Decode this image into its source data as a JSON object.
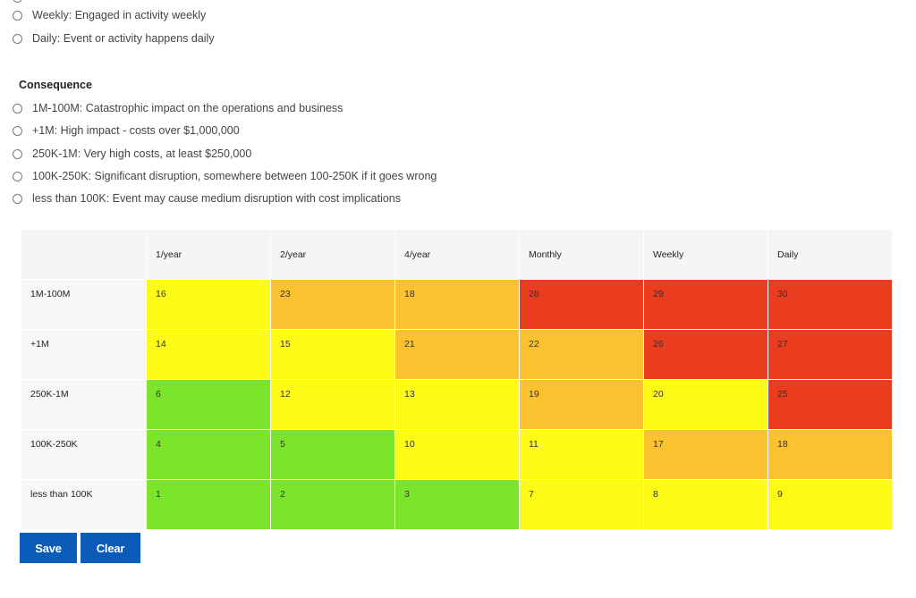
{
  "frequency_options": [
    "Weekly: Engaged in activity weekly",
    "Daily: Event or activity happens daily"
  ],
  "consequence": {
    "title": "Consequence",
    "options": [
      "1M-100M: Catastrophic impact on the operations and business",
      "+1M: High impact - costs over $1,000,000",
      "250K-1M: Very high costs, at least $250,000",
      "100K-250K: Significant disruption, somewhere between 100-250K if it goes wrong",
      "less than 100K: Event may cause medium disruption with cost implications"
    ]
  },
  "matrix": {
    "columns": [
      "1/year",
      "2/year",
      "4/year",
      "Monthly",
      "Weekly",
      "Daily"
    ],
    "rows": [
      {
        "label": "1M-100M",
        "values": [
          "16",
          "23",
          "18",
          "28",
          "29",
          "30"
        ]
      },
      {
        "label": "+1M",
        "values": [
          "14",
          "15",
          "21",
          "22",
          "26",
          "27"
        ]
      },
      {
        "label": "250K-1M",
        "values": [
          "6",
          "12",
          "13",
          "19",
          "20",
          "25"
        ]
      },
      {
        "label": "100K-250K",
        "values": [
          "4",
          "5",
          "10",
          "11",
          "17",
          "18"
        ]
      },
      {
        "label": "less than 100K",
        "values": [
          "1",
          "2",
          "3",
          "7",
          "8",
          "9"
        ]
      }
    ],
    "levels": [
      [
        "yellow",
        "orange",
        "orange",
        "red",
        "red",
        "red"
      ],
      [
        "yellow",
        "yellow",
        "orange",
        "orange",
        "red",
        "red"
      ],
      [
        "green",
        "yellow",
        "yellow",
        "orange",
        "yellow",
        "red"
      ],
      [
        "green",
        "green",
        "yellow",
        "yellow",
        "orange",
        "orange"
      ],
      [
        "green",
        "green",
        "green",
        "yellow",
        "yellow",
        "yellow"
      ]
    ],
    "colors": {
      "green": "#7ae52a",
      "yellow": "#fdfa18",
      "orange": "#fac22f",
      "red": "#ea3c1f"
    }
  },
  "buttons": {
    "save": "Save",
    "clear": "Clear"
  }
}
